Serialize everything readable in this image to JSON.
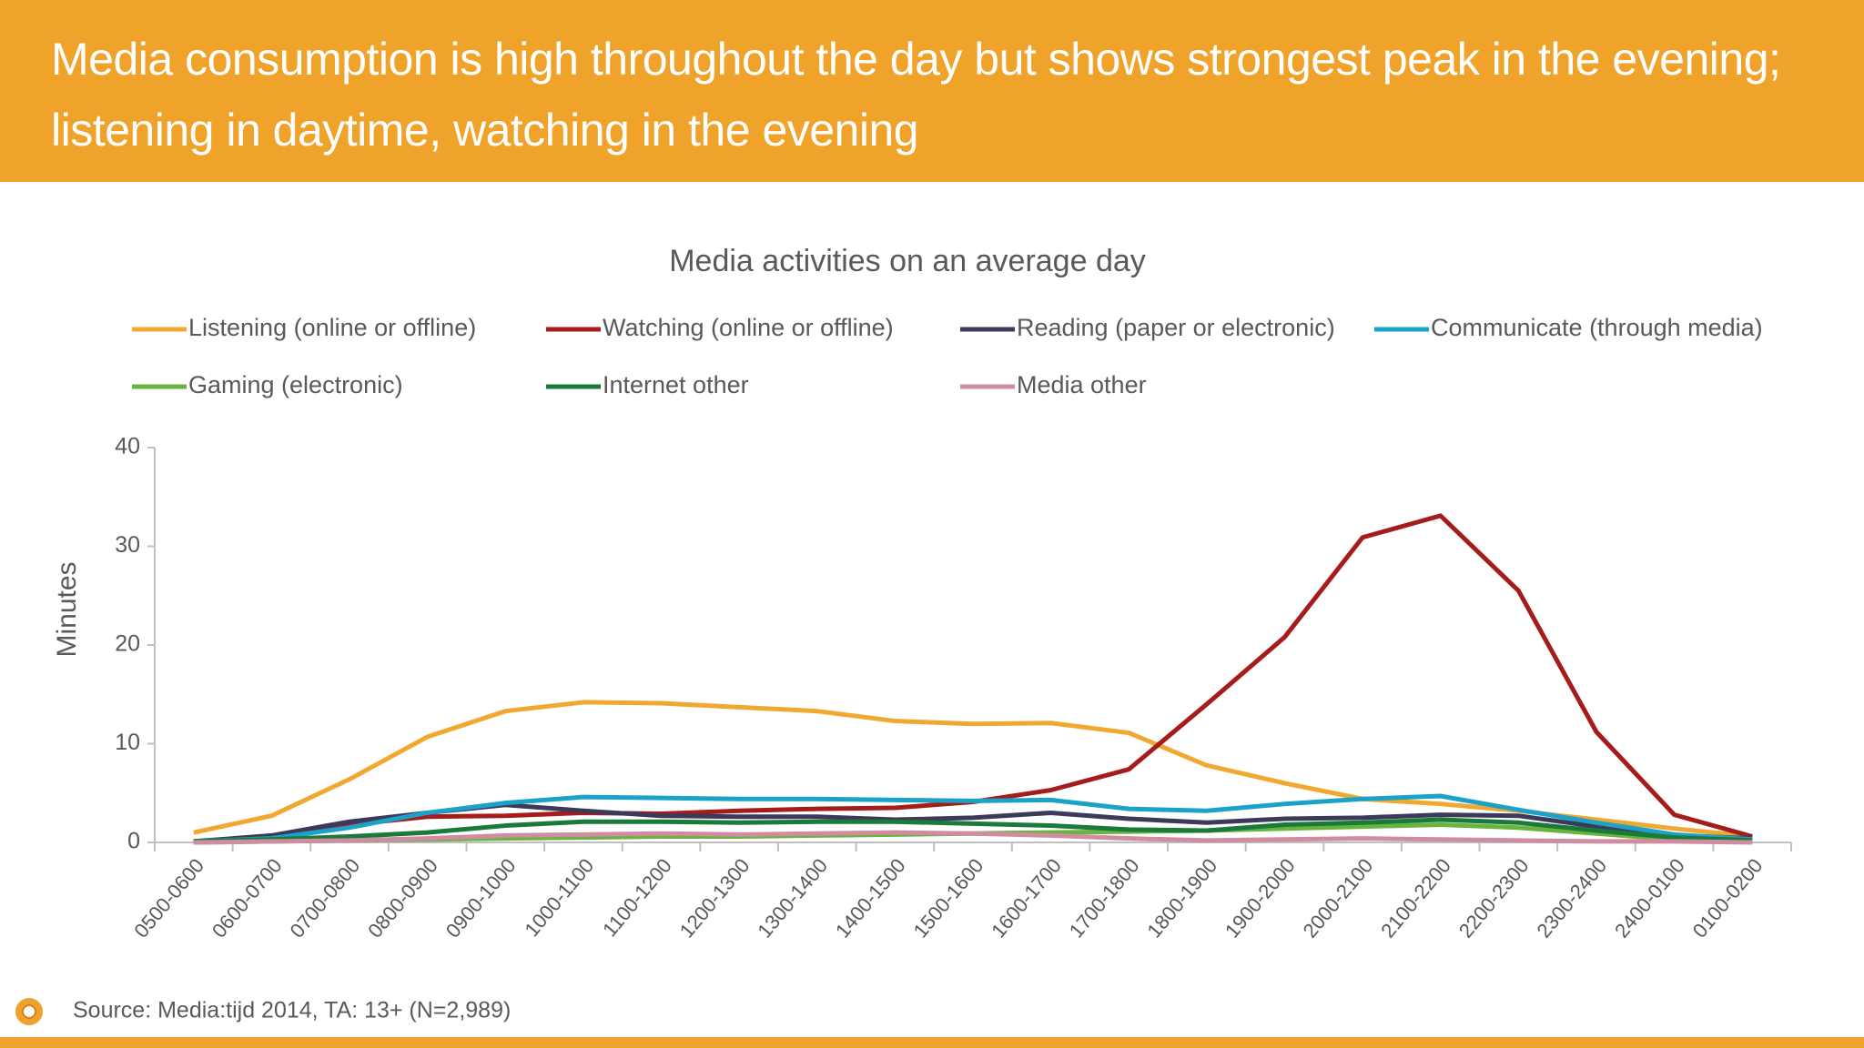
{
  "header": {
    "title": "Media consumption is high throughout the day but shows strongest peak in the evening; listening in daytime, watching in the evening"
  },
  "source": "Source: Media:tijd 2014, TA: 13+ (N=2,989)",
  "chart_data": {
    "type": "line",
    "title": "Media activities on an average day",
    "ylabel": "Minutes",
    "categories": [
      "0500-0600",
      "0600-0700",
      "0700-0800",
      "0800-0900",
      "0900-1000",
      "1000-1100",
      "1100-1200",
      "1200-1300",
      "1300-1400",
      "1400-1500",
      "1500-1600",
      "1600-1700",
      "1700-1800",
      "1800-1900",
      "1900-2000",
      "2000-2100",
      "2100-2200",
      "2200-2300",
      "2300-2400",
      "2400-0100",
      "0100-0200"
    ],
    "series": [
      {
        "name": "Listening (online or offline)",
        "color": "#f0a830",
        "values": [
          1.0,
          2.7,
          6.4,
          10.7,
          13.3,
          14.2,
          14.1,
          13.7,
          13.3,
          12.3,
          12.0,
          12.1,
          11.1,
          7.8,
          6.0,
          4.4,
          3.9,
          3.2,
          2.3,
          1.4,
          0.6
        ]
      },
      {
        "name": "Watching (online or offline)",
        "color": "#a51c1c",
        "values": [
          0.1,
          0.5,
          1.8,
          2.6,
          2.7,
          3.0,
          2.9,
          3.2,
          3.4,
          3.5,
          4.1,
          5.3,
          7.4,
          14.0,
          20.8,
          30.9,
          33.1,
          25.5,
          11.2,
          2.8,
          0.6
        ]
      },
      {
        "name": "Reading (paper or electronic)",
        "color": "#3b3a5a",
        "values": [
          0.1,
          0.7,
          2.1,
          3.0,
          3.8,
          3.2,
          2.7,
          2.6,
          2.6,
          2.3,
          2.5,
          3.0,
          2.4,
          2.0,
          2.4,
          2.5,
          2.8,
          2.7,
          1.6,
          0.7,
          0.4
        ]
      },
      {
        "name": "Communicate (through media)",
        "color": "#1ba2c9",
        "values": [
          0.1,
          0.4,
          1.5,
          3.0,
          4.0,
          4.6,
          4.5,
          4.4,
          4.4,
          4.3,
          4.2,
          4.3,
          3.4,
          3.2,
          3.9,
          4.4,
          4.7,
          3.3,
          2.0,
          0.8,
          0.3
        ]
      },
      {
        "name": "Gaming (electronic)",
        "color": "#6ab33e",
        "values": [
          0.0,
          0.1,
          0.2,
          0.3,
          0.4,
          0.5,
          0.6,
          0.6,
          0.7,
          0.8,
          0.9,
          1.0,
          1.1,
          1.2,
          1.4,
          1.6,
          1.8,
          1.5,
          0.9,
          0.3,
          0.1
        ]
      },
      {
        "name": "Internet other",
        "color": "#1a7a3a",
        "values": [
          0.1,
          0.3,
          0.6,
          1.0,
          1.7,
          2.1,
          2.1,
          2.0,
          2.1,
          2.1,
          1.9,
          1.7,
          1.3,
          1.2,
          1.8,
          2.0,
          2.3,
          2.0,
          1.2,
          0.5,
          0.2
        ]
      },
      {
        "name": "Media other",
        "color": "#d08ca0",
        "values": [
          0.0,
          0.1,
          0.2,
          0.4,
          0.7,
          0.8,
          0.9,
          0.8,
          0.9,
          1.0,
          0.9,
          0.7,
          0.4,
          0.2,
          0.3,
          0.4,
          0.3,
          0.2,
          0.1,
          0.1,
          0.0
        ]
      }
    ],
    "ylim": [
      0,
      40
    ],
    "yticks": [
      0,
      10,
      20,
      30,
      40
    ],
    "grid": false,
    "legend": "top"
  }
}
